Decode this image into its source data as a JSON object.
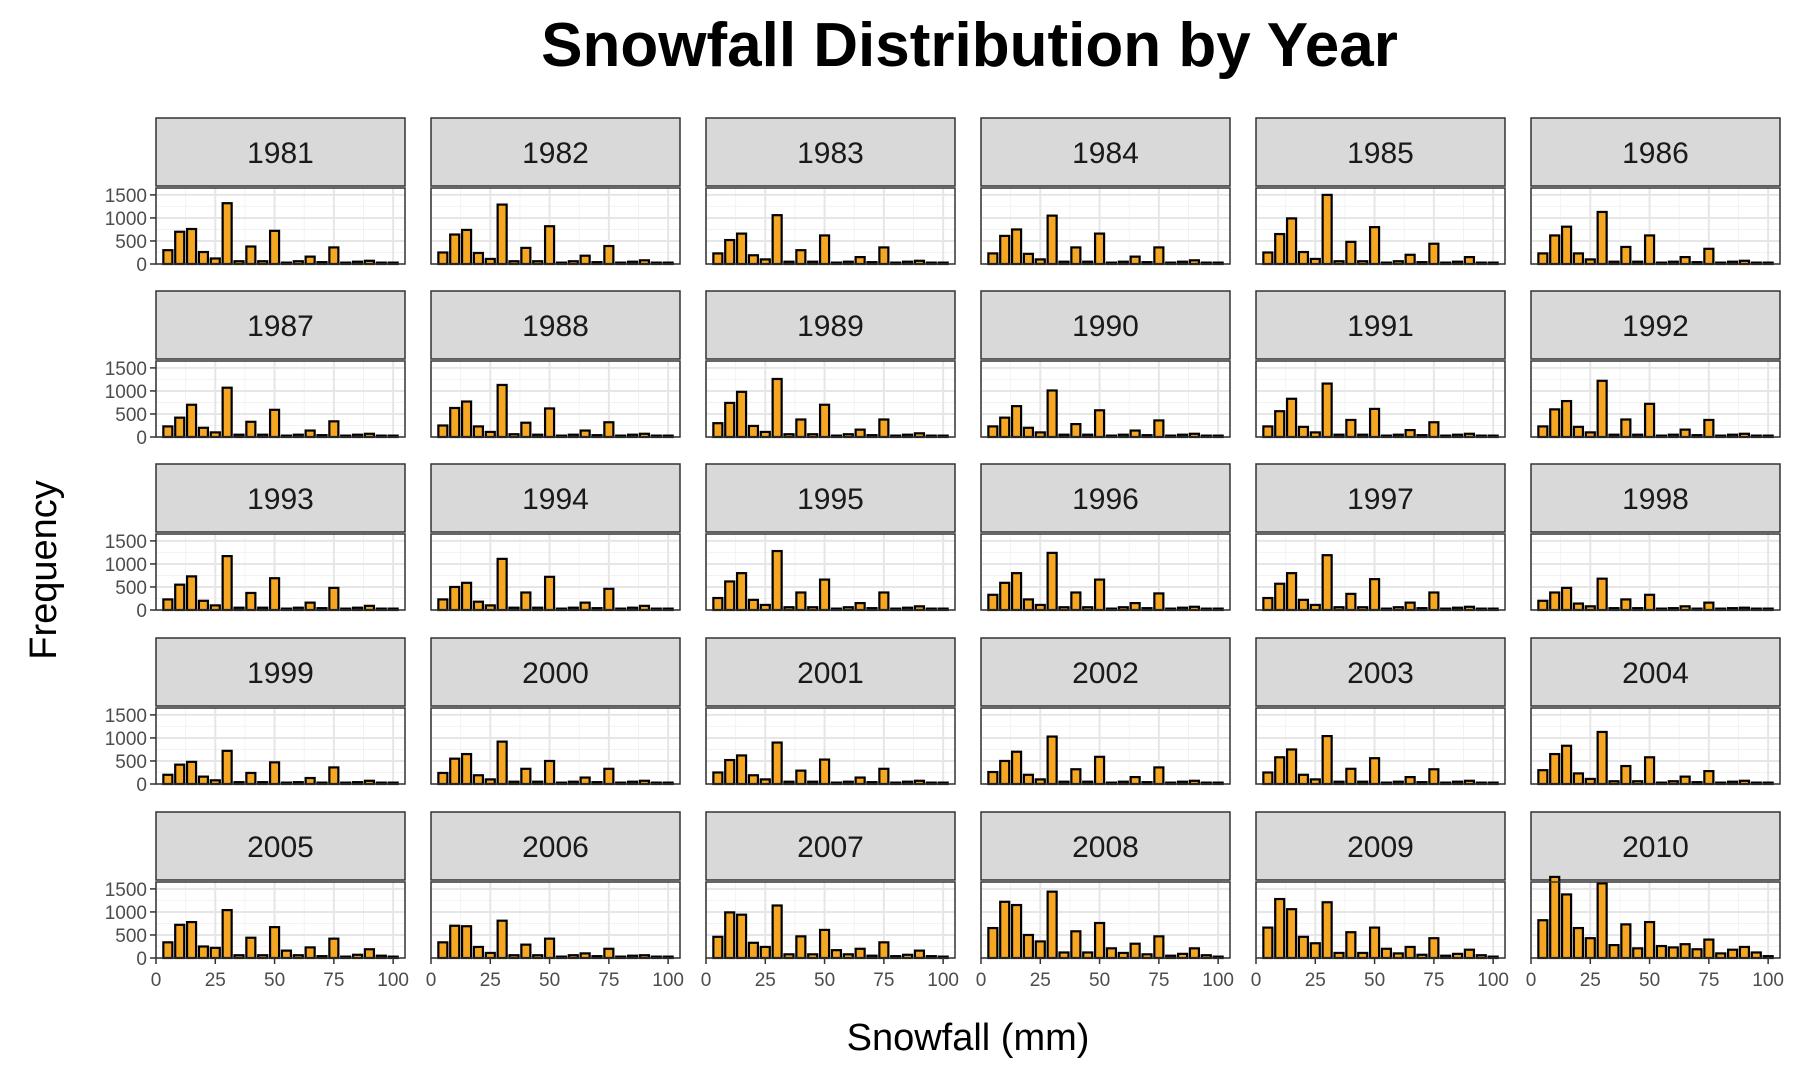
{
  "chart_data": {
    "type": "bar",
    "title": "Snowfall Distribution by Year",
    "xlabel": "Snowfall (mm)",
    "ylabel": "Frequency",
    "xlim": [
      0,
      105
    ],
    "ylim": [
      0,
      1650
    ],
    "x_ticks": [
      0,
      25,
      50,
      75,
      100
    ],
    "y_ticks": [
      0,
      500,
      1000,
      1500
    ],
    "grid": true,
    "bar_fill": "#f5a623",
    "bar_stroke": "#000000",
    "panel_border": "#333333",
    "strip_fill": "#d9d9d9",
    "bin_width": 3.8,
    "bin_centers": [
      5,
      10,
      15,
      20,
      25,
      30,
      35,
      40,
      45,
      50,
      55,
      60,
      65,
      70,
      75,
      80,
      85,
      90,
      95,
      100
    ],
    "facets": [
      {
        "year": "1981",
        "values": [
          300,
          700,
          760,
          260,
          120,
          1320,
          60,
          380,
          60,
          720,
          30,
          60,
          160,
          40,
          360,
          30,
          50,
          70,
          30,
          30
        ]
      },
      {
        "year": "1982",
        "values": [
          250,
          640,
          740,
          240,
          110,
          1290,
          60,
          350,
          60,
          820,
          30,
          60,
          180,
          40,
          390,
          30,
          50,
          80,
          30,
          30
        ]
      },
      {
        "year": "1983",
        "values": [
          230,
          520,
          660,
          190,
          100,
          1060,
          50,
          300,
          50,
          620,
          30,
          50,
          150,
          40,
          360,
          30,
          50,
          70,
          30,
          30
        ]
      },
      {
        "year": "1984",
        "values": [
          230,
          610,
          750,
          220,
          100,
          1050,
          50,
          360,
          50,
          660,
          30,
          50,
          160,
          40,
          360,
          30,
          50,
          80,
          30,
          30
        ]
      },
      {
        "year": "1985",
        "values": [
          250,
          650,
          990,
          260,
          110,
          1500,
          60,
          480,
          60,
          800,
          30,
          60,
          200,
          40,
          440,
          30,
          50,
          150,
          30,
          30
        ]
      },
      {
        "year": "1986",
        "values": [
          230,
          620,
          810,
          230,
          100,
          1130,
          50,
          370,
          50,
          620,
          30,
          50,
          150,
          40,
          330,
          30,
          50,
          70,
          30,
          30
        ]
      },
      {
        "year": "1987",
        "values": [
          230,
          420,
          700,
          200,
          100,
          1070,
          50,
          330,
          50,
          590,
          30,
          50,
          140,
          40,
          340,
          30,
          50,
          70,
          30,
          30
        ]
      },
      {
        "year": "1988",
        "values": [
          250,
          630,
          770,
          230,
          110,
          1130,
          60,
          310,
          50,
          620,
          30,
          50,
          140,
          40,
          320,
          30,
          50,
          70,
          30,
          30
        ]
      },
      {
        "year": "1989",
        "values": [
          300,
          740,
          980,
          240,
          110,
          1260,
          60,
          380,
          60,
          700,
          30,
          60,
          160,
          40,
          380,
          30,
          50,
          80,
          30,
          30
        ]
      },
      {
        "year": "1990",
        "values": [
          230,
          420,
          670,
          200,
          100,
          1010,
          50,
          280,
          50,
          580,
          30,
          50,
          140,
          40,
          360,
          30,
          50,
          70,
          30,
          30
        ]
      },
      {
        "year": "1991",
        "values": [
          230,
          560,
          830,
          220,
          100,
          1160,
          50,
          370,
          50,
          610,
          30,
          50,
          150,
          40,
          320,
          30,
          50,
          70,
          30,
          30
        ]
      },
      {
        "year": "1992",
        "values": [
          230,
          600,
          780,
          220,
          100,
          1220,
          50,
          380,
          50,
          720,
          30,
          50,
          160,
          40,
          370,
          30,
          50,
          70,
          30,
          30
        ]
      },
      {
        "year": "1993",
        "values": [
          230,
          550,
          730,
          200,
          100,
          1170,
          50,
          370,
          50,
          690,
          30,
          50,
          160,
          40,
          480,
          30,
          50,
          90,
          30,
          30
        ]
      },
      {
        "year": "1994",
        "values": [
          230,
          500,
          590,
          180,
          100,
          1110,
          50,
          380,
          50,
          720,
          30,
          50,
          160,
          40,
          460,
          30,
          50,
          90,
          30,
          30
        ]
      },
      {
        "year": "1995",
        "values": [
          260,
          620,
          800,
          220,
          110,
          1280,
          60,
          380,
          60,
          660,
          30,
          60,
          150,
          40,
          380,
          30,
          50,
          80,
          30,
          30
        ]
      },
      {
        "year": "1996",
        "values": [
          330,
          590,
          800,
          230,
          110,
          1240,
          60,
          380,
          60,
          660,
          30,
          60,
          150,
          40,
          360,
          30,
          50,
          70,
          30,
          30
        ]
      },
      {
        "year": "1997",
        "values": [
          260,
          570,
          800,
          220,
          110,
          1190,
          60,
          350,
          60,
          670,
          30,
          60,
          160,
          40,
          380,
          30,
          50,
          70,
          30,
          30
        ]
      },
      {
        "year": "1998",
        "values": [
          200,
          380,
          480,
          140,
          80,
          680,
          40,
          230,
          40,
          330,
          30,
          40,
          80,
          30,
          160,
          30,
          40,
          50,
          30,
          30
        ]
      },
      {
        "year": "1999",
        "values": [
          200,
          420,
          480,
          160,
          80,
          720,
          40,
          240,
          40,
          470,
          30,
          40,
          130,
          30,
          360,
          30,
          40,
          70,
          30,
          30
        ]
      },
      {
        "year": "2000",
        "values": [
          240,
          550,
          650,
          190,
          100,
          920,
          50,
          330,
          50,
          500,
          30,
          50,
          140,
          40,
          330,
          30,
          50,
          70,
          30,
          30
        ]
      },
      {
        "year": "2001",
        "values": [
          250,
          520,
          620,
          190,
          100,
          900,
          50,
          290,
          50,
          530,
          30,
          50,
          140,
          40,
          330,
          30,
          50,
          70,
          30,
          30
        ]
      },
      {
        "year": "2002",
        "values": [
          260,
          500,
          700,
          200,
          100,
          1030,
          50,
          320,
          50,
          590,
          30,
          50,
          150,
          40,
          360,
          30,
          50,
          70,
          30,
          30
        ]
      },
      {
        "year": "2003",
        "values": [
          250,
          580,
          750,
          200,
          100,
          1040,
          50,
          330,
          50,
          560,
          30,
          50,
          150,
          40,
          320,
          30,
          50,
          70,
          30,
          30
        ]
      },
      {
        "year": "2004",
        "values": [
          300,
          650,
          830,
          230,
          110,
          1130,
          60,
          390,
          60,
          580,
          30,
          60,
          160,
          40,
          280,
          30,
          50,
          70,
          30,
          30
        ]
      },
      {
        "year": "2005",
        "values": [
          340,
          720,
          780,
          250,
          220,
          1040,
          60,
          440,
          60,
          670,
          160,
          60,
          230,
          40,
          420,
          30,
          70,
          190,
          50,
          30
        ]
      },
      {
        "year": "2006",
        "values": [
          340,
          700,
          690,
          240,
          110,
          810,
          60,
          290,
          60,
          420,
          30,
          60,
          100,
          40,
          200,
          30,
          50,
          60,
          30,
          30
        ]
      },
      {
        "year": "2007",
        "values": [
          460,
          990,
          940,
          330,
          240,
          1140,
          80,
          470,
          80,
          610,
          170,
          80,
          200,
          50,
          340,
          40,
          70,
          160,
          40,
          30
        ]
      },
      {
        "year": "2008",
        "values": [
          650,
          1220,
          1150,
          500,
          360,
          1440,
          120,
          580,
          120,
          760,
          210,
          110,
          310,
          80,
          470,
          50,
          90,
          210,
          60,
          30
        ]
      },
      {
        "year": "2009",
        "values": [
          660,
          1280,
          1060,
          460,
          320,
          1210,
          110,
          560,
          110,
          660,
          200,
          100,
          240,
          70,
          430,
          50,
          90,
          180,
          60,
          30
        ]
      },
      {
        "year": "2010",
        "values": [
          820,
          1760,
          1380,
          650,
          430,
          1620,
          280,
          730,
          210,
          780,
          260,
          230,
          300,
          190,
          400,
          100,
          180,
          240,
          120,
          40
        ]
      }
    ]
  }
}
